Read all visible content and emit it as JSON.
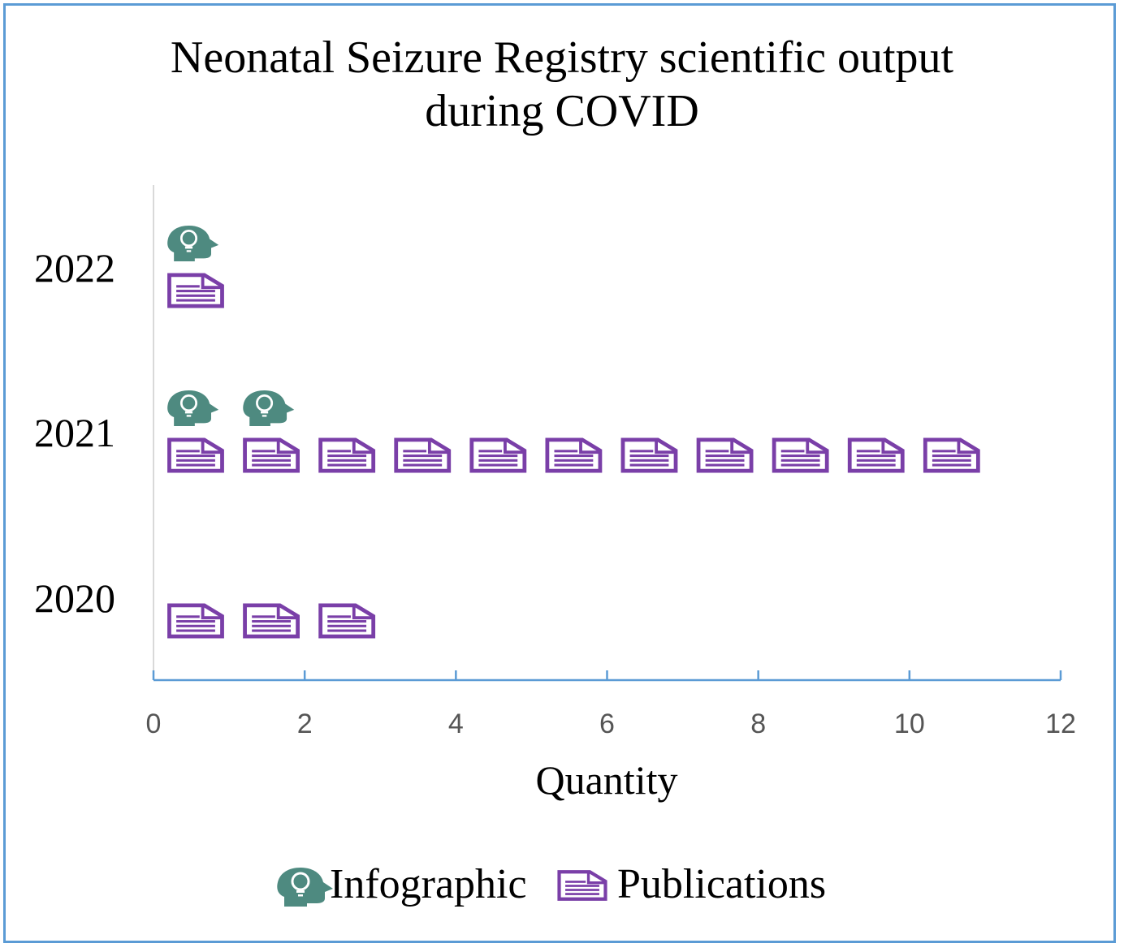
{
  "chart_data": {
    "type": "bar",
    "title_lines": [
      "Neonatal Seizure Registry scientific output",
      "during COVID"
    ],
    "categories": [
      "2020",
      "2021",
      "2022"
    ],
    "series": [
      {
        "name": "Infographic",
        "values": [
          0,
          2,
          1
        ],
        "color": "#4e8a80",
        "icon": "head-lightbulb-icon"
      },
      {
        "name": "Publications",
        "values": [
          3,
          11,
          1
        ],
        "color": "#7a3fa8",
        "icon": "document-icon"
      }
    ],
    "xlabel": "Quantity",
    "ylabel": "",
    "xlim": [
      0,
      12
    ],
    "xticks": [
      "0",
      "2",
      "4",
      "6",
      "8",
      "10",
      "12"
    ],
    "grid": false,
    "legend_position": "bottom",
    "orientation": "horizontal",
    "mark_style": "pictograph"
  },
  "colors": {
    "frame_border": "#5b9bd5",
    "axis": "#5b9bd5",
    "tick_label": "#555555"
  }
}
